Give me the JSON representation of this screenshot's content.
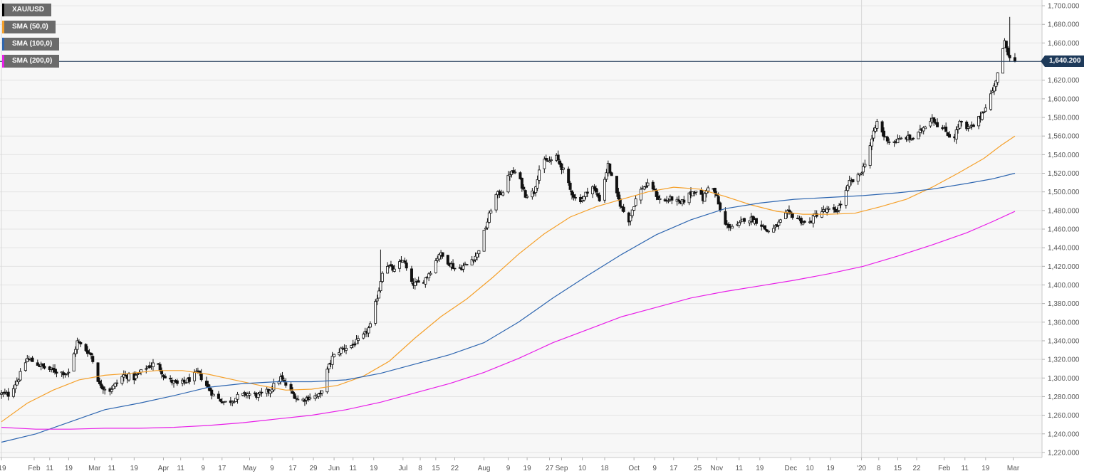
{
  "chart_data": {
    "type": "candlestick",
    "title": "",
    "legend": [
      {
        "name": "XAU/USD",
        "color": "#000000"
      },
      {
        "name": "SMA (50,0)",
        "color": "#f5a02a"
      },
      {
        "name": "SMA (100,0)",
        "color": "#2e66b0"
      },
      {
        "name": "SMA (200,0)",
        "color": "#e81ee8"
      }
    ],
    "legend_position": "top-left",
    "ylim": [
      1210,
      1710
    ],
    "y_axis_position": "right",
    "y_ticks": [
      {
        "v": 1220,
        "label": "1,220.000"
      },
      {
        "v": 1240,
        "label": "1,240.000"
      },
      {
        "v": 1260,
        "label": "1,260.000"
      },
      {
        "v": 1280,
        "label": "1,280.000"
      },
      {
        "v": 1300,
        "label": "1,300.000"
      },
      {
        "v": 1320,
        "label": "1,320.000"
      },
      {
        "v": 1340,
        "label": "1,340.000"
      },
      {
        "v": 1360,
        "label": "1,360.000"
      },
      {
        "v": 1380,
        "label": "1,380.000"
      },
      {
        "v": 1400,
        "label": "1,400.000"
      },
      {
        "v": 1420,
        "label": "1,420.000"
      },
      {
        "v": 1440,
        "label": "1,440.000"
      },
      {
        "v": 1460,
        "label": "1,460.000"
      },
      {
        "v": 1480,
        "label": "1,480.000"
      },
      {
        "v": 1500,
        "label": "1,500.000"
      },
      {
        "v": 1520,
        "label": "1,520.000"
      },
      {
        "v": 1540,
        "label": "1,540.000"
      },
      {
        "v": 1560,
        "label": "1,560.000"
      },
      {
        "v": 1580,
        "label": "1,580.000"
      },
      {
        "v": 1600,
        "label": "1,600.000"
      },
      {
        "v": 1620,
        "label": "1,620.000"
      },
      {
        "v": 1640,
        "label": "1,640.000"
      },
      {
        "v": 1660,
        "label": "1,660.000"
      },
      {
        "v": 1680,
        "label": "1,680.000"
      },
      {
        "v": 1700,
        "label": "1,700.000"
      }
    ],
    "last_price": 1640.2,
    "last_price_label": "1,640.200",
    "x_ticks": [
      {
        "i": 0,
        "label": "'19"
      },
      {
        "i": 19,
        "label": "Feb"
      },
      {
        "i": 28,
        "label": "11"
      },
      {
        "i": 39,
        "label": "19"
      },
      {
        "i": 54,
        "label": "Mar"
      },
      {
        "i": 64,
        "label": "11"
      },
      {
        "i": 77,
        "label": "19"
      },
      {
        "i": 94,
        "label": "Apr"
      },
      {
        "i": 104,
        "label": "11"
      },
      {
        "i": 117,
        "label": "9"
      },
      {
        "i": 128,
        "label": "17"
      },
      {
        "i": 144,
        "label": "May"
      },
      {
        "i": 157,
        "label": "9"
      },
      {
        "i": 169,
        "label": "17"
      },
      {
        "i": 181,
        "label": "29"
      },
      {
        "i": 193,
        "label": "Jun"
      },
      {
        "i": 204,
        "label": "11"
      },
      {
        "i": 216,
        "label": "19"
      },
      {
        "i": 233,
        "label": "Jul"
      },
      {
        "i": 243,
        "label": "8"
      },
      {
        "i": 252,
        "label": "15"
      },
      {
        "i": 263,
        "label": "22"
      },
      {
        "i": 280,
        "label": "Aug"
      },
      {
        "i": 294,
        "label": "9"
      },
      {
        "i": 305,
        "label": "19"
      },
      {
        "i": 318,
        "label": "27"
      },
      {
        "i": 325,
        "label": "Sep"
      },
      {
        "i": 337,
        "label": "10"
      },
      {
        "i": 350,
        "label": "18"
      },
      {
        "i": 367,
        "label": "Oct"
      },
      {
        "i": 379,
        "label": "9"
      },
      {
        "i": 390,
        "label": "17"
      },
      {
        "i": 404,
        "label": "25"
      },
      {
        "i": 415,
        "label": "Nov"
      },
      {
        "i": 428,
        "label": "11"
      },
      {
        "i": 440,
        "label": "19"
      },
      {
        "i": 458,
        "label": "Dec"
      },
      {
        "i": 469,
        "label": "10"
      },
      {
        "i": 481,
        "label": "19"
      },
      {
        "i": 499,
        "label": "'20"
      },
      {
        "i": 509,
        "label": "8"
      },
      {
        "i": 520,
        "label": "15"
      },
      {
        "i": 531,
        "label": "22"
      },
      {
        "i": 547,
        "label": "Feb"
      },
      {
        "i": 559,
        "label": "11"
      },
      {
        "i": 571,
        "label": "19"
      },
      {
        "i": 587,
        "label": "Mar"
      }
    ],
    "x_divider_indices": [
      0,
      499
    ],
    "close_anchors": [
      [
        0,
        1283
      ],
      [
        4,
        1282
      ],
      [
        10,
        1300
      ],
      [
        15,
        1321
      ],
      [
        20,
        1316
      ],
      [
        26,
        1310
      ],
      [
        32,
        1307
      ],
      [
        39,
        1305
      ],
      [
        44,
        1339
      ],
      [
        52,
        1325
      ],
      [
        57,
        1292
      ],
      [
        63,
        1287
      ],
      [
        71,
        1303
      ],
      [
        77,
        1300
      ],
      [
        83,
        1310
      ],
      [
        90,
        1317
      ],
      [
        95,
        1300
      ],
      [
        102,
        1293
      ],
      [
        108,
        1297
      ],
      [
        114,
        1306
      ],
      [
        119,
        1292
      ],
      [
        124,
        1279
      ],
      [
        131,
        1273
      ],
      [
        137,
        1280
      ],
      [
        143,
        1283
      ],
      [
        149,
        1281
      ],
      [
        155,
        1286
      ],
      [
        162,
        1300
      ],
      [
        168,
        1285
      ],
      [
        173,
        1275
      ],
      [
        179,
        1280
      ],
      [
        185,
        1281
      ],
      [
        188,
        1303
      ],
      [
        192,
        1322
      ],
      [
        197,
        1331
      ],
      [
        203,
        1335
      ],
      [
        209,
        1342
      ],
      [
        214,
        1356
      ],
      [
        219,
        1395
      ],
      [
        222,
        1425
      ],
      [
        228,
        1415
      ],
      [
        233,
        1428
      ],
      [
        238,
        1401
      ],
      [
        244,
        1402
      ],
      [
        250,
        1418
      ],
      [
        254,
        1434
      ],
      [
        258,
        1427
      ],
      [
        264,
        1416
      ],
      [
        270,
        1422
      ],
      [
        276,
        1433
      ],
      [
        282,
        1468
      ],
      [
        286,
        1495
      ],
      [
        291,
        1501
      ],
      [
        295,
        1520
      ],
      [
        299,
        1521
      ],
      [
        304,
        1497
      ],
      [
        309,
        1500
      ],
      [
        313,
        1532
      ],
      [
        318,
        1533
      ],
      [
        322,
        1537
      ],
      [
        326,
        1523
      ],
      [
        330,
        1502
      ],
      [
        334,
        1490
      ],
      [
        338,
        1494
      ],
      [
        342,
        1509
      ],
      [
        347,
        1492
      ],
      [
        352,
        1529
      ],
      [
        356,
        1501
      ],
      [
        360,
        1482
      ],
      [
        364,
        1470
      ],
      [
        368,
        1492
      ],
      [
        372,
        1505
      ],
      [
        377,
        1508
      ],
      [
        381,
        1493
      ],
      [
        385,
        1490
      ],
      [
        389,
        1493
      ],
      [
        394,
        1487
      ],
      [
        399,
        1497
      ],
      [
        403,
        1503
      ],
      [
        407,
        1492
      ],
      [
        411,
        1511
      ],
      [
        415,
        1494
      ],
      [
        419,
        1465
      ],
      [
        423,
        1463
      ],
      [
        427,
        1463
      ],
      [
        431,
        1471
      ],
      [
        435,
        1471
      ],
      [
        440,
        1467
      ],
      [
        444,
        1458
      ],
      [
        448,
        1460
      ],
      [
        452,
        1468
      ],
      [
        456,
        1477
      ],
      [
        460,
        1474
      ],
      [
        464,
        1469
      ],
      [
        468,
        1464
      ],
      [
        472,
        1475
      ],
      [
        476,
        1479
      ],
      [
        480,
        1480
      ],
      [
        484,
        1479
      ],
      [
        488,
        1490
      ],
      [
        492,
        1510
      ],
      [
        496,
        1513
      ],
      [
        500,
        1526
      ],
      [
        504,
        1550
      ],
      [
        508,
        1575
      ],
      [
        512,
        1560
      ],
      [
        516,
        1553
      ],
      [
        520,
        1555
      ],
      [
        524,
        1559
      ],
      [
        528,
        1557
      ],
      [
        532,
        1562
      ],
      [
        536,
        1572
      ],
      [
        540,
        1580
      ],
      [
        544,
        1570
      ],
      [
        548,
        1565
      ],
      [
        552,
        1555
      ],
      [
        556,
        1575
      ],
      [
        560,
        1567
      ],
      [
        564,
        1571
      ],
      [
        568,
        1581
      ],
      [
        572,
        1596
      ],
      [
        576,
        1613
      ],
      [
        580,
        1645
      ],
      [
        582,
        1660
      ],
      [
        584,
        1650
      ],
      [
        586,
        1642
      ],
      [
        588,
        1640.2
      ]
    ],
    "sma50_anchors": [
      [
        0,
        1253
      ],
      [
        15,
        1273
      ],
      [
        30,
        1287
      ],
      [
        45,
        1298
      ],
      [
        60,
        1303
      ],
      [
        75,
        1305
      ],
      [
        90,
        1308
      ],
      [
        105,
        1308
      ],
      [
        120,
        1304
      ],
      [
        135,
        1298
      ],
      [
        150,
        1292
      ],
      [
        165,
        1287
      ],
      [
        180,
        1288
      ],
      [
        195,
        1292
      ],
      [
        210,
        1302
      ],
      [
        225,
        1318
      ],
      [
        240,
        1343
      ],
      [
        255,
        1366
      ],
      [
        270,
        1385
      ],
      [
        285,
        1408
      ],
      [
        300,
        1433
      ],
      [
        315,
        1455
      ],
      [
        330,
        1473
      ],
      [
        345,
        1484
      ],
      [
        360,
        1492
      ],
      [
        375,
        1500
      ],
      [
        390,
        1505
      ],
      [
        405,
        1503
      ],
      [
        420,
        1495
      ],
      [
        435,
        1486
      ],
      [
        450,
        1479
      ],
      [
        465,
        1476
      ],
      [
        480,
        1476
      ],
      [
        495,
        1477
      ],
      [
        510,
        1484
      ],
      [
        525,
        1492
      ],
      [
        540,
        1505
      ],
      [
        555,
        1520
      ],
      [
        570,
        1536
      ],
      [
        580,
        1550
      ],
      [
        588,
        1560
      ]
    ],
    "sma100_anchors": [
      [
        0,
        1231
      ],
      [
        20,
        1240
      ],
      [
        40,
        1253
      ],
      [
        60,
        1266
      ],
      [
        80,
        1273
      ],
      [
        100,
        1281
      ],
      [
        120,
        1290
      ],
      [
        140,
        1294
      ],
      [
        160,
        1296
      ],
      [
        180,
        1296
      ],
      [
        200,
        1298
      ],
      [
        220,
        1305
      ],
      [
        240,
        1315
      ],
      [
        260,
        1325
      ],
      [
        280,
        1338
      ],
      [
        300,
        1360
      ],
      [
        320,
        1386
      ],
      [
        340,
        1410
      ],
      [
        360,
        1433
      ],
      [
        380,
        1454
      ],
      [
        400,
        1470
      ],
      [
        420,
        1482
      ],
      [
        440,
        1488
      ],
      [
        460,
        1492
      ],
      [
        480,
        1494
      ],
      [
        500,
        1496
      ],
      [
        520,
        1499
      ],
      [
        540,
        1503
      ],
      [
        560,
        1509
      ],
      [
        575,
        1514
      ],
      [
        588,
        1520
      ]
    ],
    "sma200_anchors": [
      [
        0,
        1247
      ],
      [
        20,
        1245
      ],
      [
        40,
        1245
      ],
      [
        60,
        1246
      ],
      [
        80,
        1246
      ],
      [
        100,
        1247
      ],
      [
        120,
        1249
      ],
      [
        140,
        1252
      ],
      [
        160,
        1256
      ],
      [
        180,
        1260
      ],
      [
        200,
        1266
      ],
      [
        220,
        1274
      ],
      [
        240,
        1284
      ],
      [
        260,
        1294
      ],
      [
        280,
        1306
      ],
      [
        300,
        1321
      ],
      [
        320,
        1338
      ],
      [
        340,
        1352
      ],
      [
        360,
        1366
      ],
      [
        380,
        1376
      ],
      [
        400,
        1386
      ],
      [
        420,
        1393
      ],
      [
        440,
        1399
      ],
      [
        460,
        1405
      ],
      [
        480,
        1412
      ],
      [
        500,
        1420
      ],
      [
        520,
        1431
      ],
      [
        540,
        1443
      ],
      [
        560,
        1456
      ],
      [
        575,
        1468
      ],
      [
        588,
        1479
      ]
    ],
    "x_count": 596
  }
}
